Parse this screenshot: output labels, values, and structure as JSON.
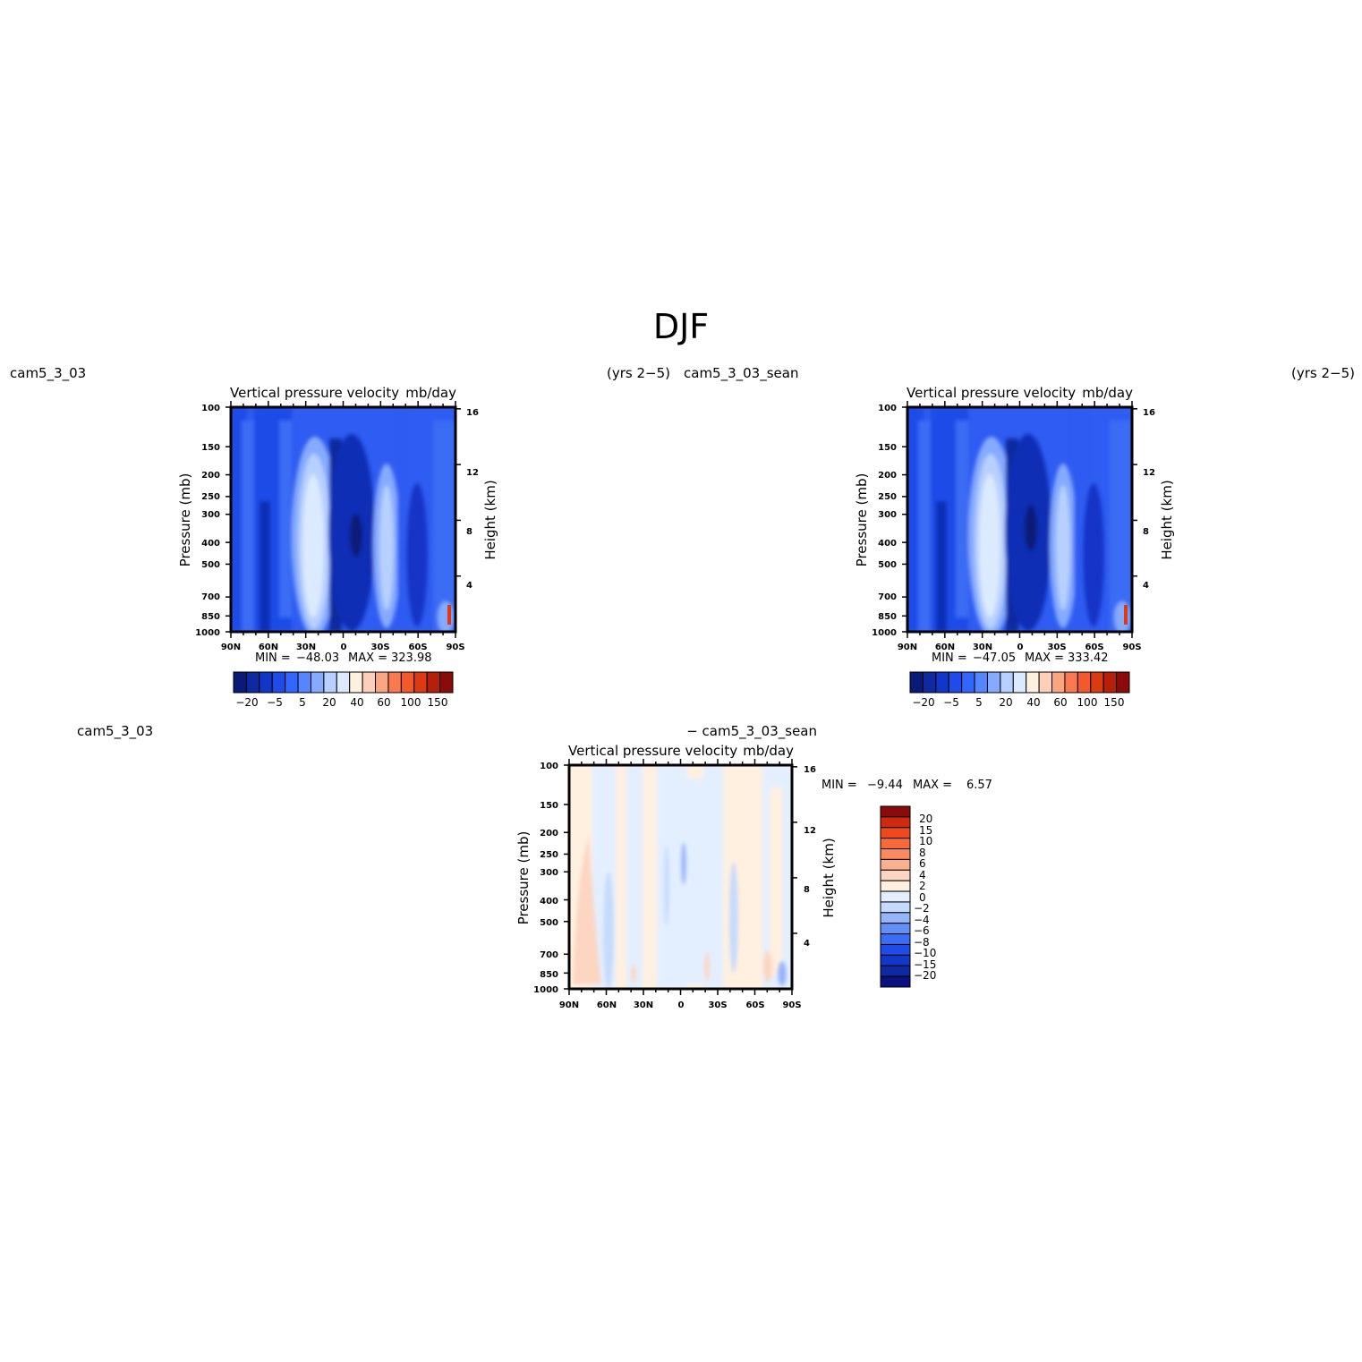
{
  "figure": {
    "title": "DJF",
    "run_label_left": "cam5_3_03",
    "years_label": "(yrs 2-5)",
    "run_label_right": "cam5_3_03_sean",
    "diff_run_left": "cam5_3_03",
    "diff_run_right": "- cam5_3_03_sean"
  },
  "chart_data": [
    {
      "type": "heatmap",
      "title": "Vertical pressure velocity",
      "units": "mb/day",
      "ylabel": "Pressure (mb)",
      "ylabel_right": "Height (km)",
      "x_ticks": [
        "90N",
        "60N",
        "30N",
        "0",
        "30S",
        "60S",
        "90S"
      ],
      "y_ticks": [
        100,
        150,
        200,
        250,
        300,
        400,
        500,
        700,
        850,
        1000
      ],
      "y_ticks_right": [
        16,
        12,
        8,
        4
      ],
      "y_scale": "log",
      "ylim": [
        1000,
        100
      ],
      "stats": {
        "min_label": "MIN =",
        "min": "-48.03",
        "max_label": "MAX =",
        "max": "323.98"
      },
      "colorbar": {
        "orientation": "horizontal",
        "colors": [
          "#0a1a78",
          "#0d2aa0",
          "#1236c8",
          "#1f4be8",
          "#3366ff",
          "#5585ff",
          "#85aaff",
          "#b7d0ff",
          "#dceaff",
          "#fff0e0",
          "#fdcfb8",
          "#fba683",
          "#f97a52",
          "#f25a2e",
          "#dc3a12",
          "#b5200b",
          "#8a0c0a"
        ],
        "labels": [
          "-20",
          "-5",
          "5",
          "20",
          "40",
          "60",
          "100",
          "150"
        ]
      }
    },
    {
      "type": "heatmap",
      "title": "Vertical pressure velocity",
      "units": "mb/day",
      "ylabel": "Pressure (mb)",
      "ylabel_right": "Height (km)",
      "x_ticks": [
        "90N",
        "60N",
        "30N",
        "0",
        "30S",
        "60S",
        "90S"
      ],
      "y_ticks": [
        100,
        150,
        200,
        250,
        300,
        400,
        500,
        700,
        850,
        1000
      ],
      "y_ticks_right": [
        16,
        12,
        8,
        4
      ],
      "y_scale": "log",
      "ylim": [
        1000,
        100
      ],
      "stats": {
        "min_label": "MIN =",
        "min": "-47.05",
        "max_label": "MAX =",
        "max": "333.42"
      },
      "colorbar": {
        "orientation": "horizontal",
        "colors": [
          "#0a1a78",
          "#0d2aa0",
          "#1236c8",
          "#1f4be8",
          "#3366ff",
          "#5585ff",
          "#85aaff",
          "#b7d0ff",
          "#dceaff",
          "#fff0e0",
          "#fdcfb8",
          "#fba683",
          "#f97a52",
          "#f25a2e",
          "#dc3a12",
          "#b5200b",
          "#8a0c0a"
        ],
        "labels": [
          "-20",
          "-5",
          "5",
          "20",
          "40",
          "60",
          "100",
          "150"
        ]
      }
    },
    {
      "type": "heatmap",
      "title": "Vertical pressure velocity",
      "units": "mb/day",
      "ylabel": "Pressure (mb)",
      "ylabel_right": "Height (km)",
      "x_ticks": [
        "90N",
        "60N",
        "30N",
        "0",
        "30S",
        "60S",
        "90S"
      ],
      "y_ticks": [
        100,
        150,
        200,
        250,
        300,
        400,
        500,
        700,
        850,
        1000
      ],
      "y_ticks_right": [
        16,
        12,
        8,
        4
      ],
      "y_scale": "log",
      "ylim": [
        1000,
        100
      ],
      "stats": {
        "min_label": "MIN =",
        "min": "-9.44",
        "max_label": "MAX =",
        "max": "6.57"
      },
      "colorbar": {
        "orientation": "vertical",
        "colors": [
          "#0b1080",
          "#0d2aa0",
          "#1236c8",
          "#1f4be8",
          "#3a6cf4",
          "#6290f8",
          "#95b5fb",
          "#c6dafd",
          "#e3efff",
          "#fff0e0",
          "#fcd6c2",
          "#fbb090",
          "#fa8a60",
          "#f86a3a",
          "#ef4a1e",
          "#cf2a10",
          "#8a0c0a"
        ],
        "labels": [
          "20",
          "15",
          "10",
          "8",
          "6",
          "4",
          "2",
          "0",
          "-2",
          "-4",
          "-6",
          "-8",
          "-10",
          "-15",
          "-20"
        ]
      }
    }
  ]
}
